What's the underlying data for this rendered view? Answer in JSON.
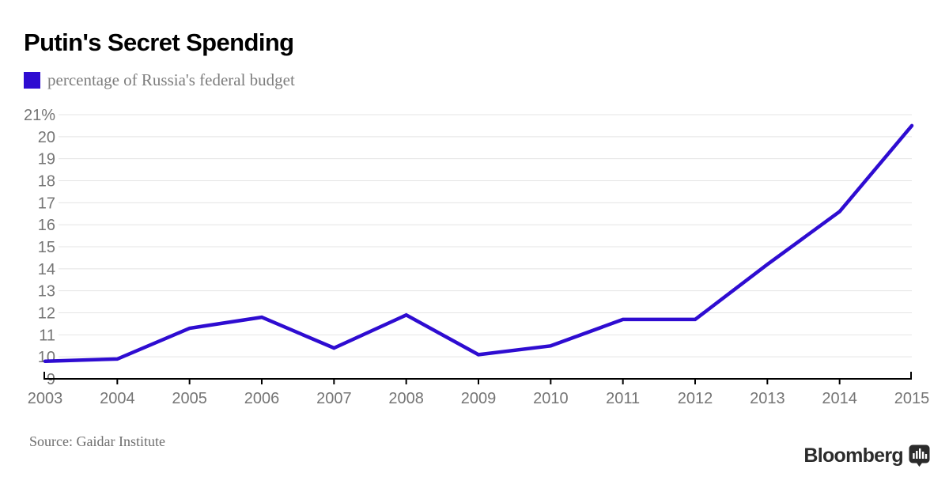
{
  "header": {
    "title": "Putin's Secret Spending"
  },
  "legend": {
    "label": "percentage of Russia's federal budget",
    "swatch_color": "#2e0cd1"
  },
  "chart_data": {
    "type": "line",
    "title": "Putin's Secret Spending",
    "series": [
      {
        "name": "percentage of Russia's federal budget",
        "values": [
          9.8,
          9.9,
          11.3,
          11.8,
          10.4,
          11.9,
          10.1,
          10.5,
          11.7,
          11.7,
          14.2,
          16.6,
          20.5
        ]
      }
    ],
    "x": [
      2003,
      2004,
      2005,
      2006,
      2007,
      2008,
      2009,
      2010,
      2011,
      2012,
      2013,
      2014,
      2015
    ],
    "xlabel": "",
    "ylabel": "",
    "ylim": [
      9,
      21
    ],
    "yticks": [
      9,
      10,
      11,
      12,
      13,
      14,
      15,
      16,
      17,
      18,
      19,
      20,
      21
    ],
    "ytick_top_label": "21%",
    "legend_position": "top-left",
    "grid": true,
    "line_color": "#2e0cd1",
    "grid_color": "#e4e4e4",
    "axis_color": "#000000",
    "tick_label_color": "#757575"
  },
  "footer": {
    "source": "Source: Gaidar Institute",
    "brand": "Bloomberg",
    "logo_icon": "bar-chart-bubble-icon"
  }
}
